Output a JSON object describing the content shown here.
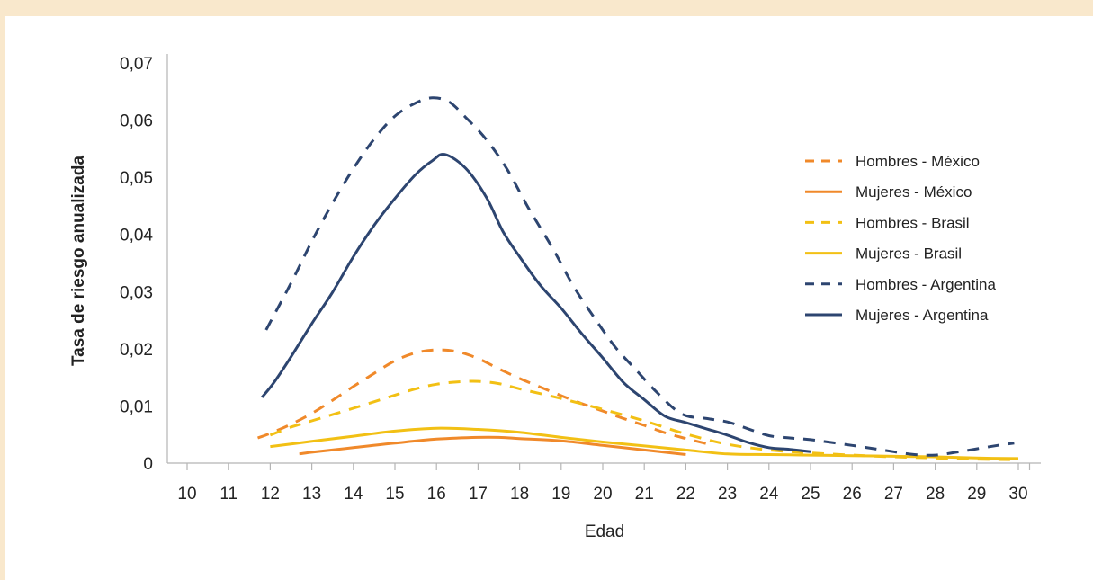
{
  "chart_data": {
    "type": "line",
    "xlabel": "Edad",
    "ylabel": "Tasa de riesgo anualizada",
    "xlim": [
      10,
      30
    ],
    "ylim": [
      0,
      0.07
    ],
    "x_ticks": [
      10,
      11,
      12,
      13,
      14,
      15,
      16,
      17,
      18,
      19,
      20,
      21,
      22,
      23,
      24,
      25,
      26,
      27,
      28,
      29,
      30
    ],
    "y_ticks": [
      0,
      0.01,
      0.02,
      0.03,
      0.04,
      0.05,
      0.06,
      0.07
    ],
    "y_tick_labels": [
      "0",
      "0,01",
      "0,02",
      "0,03",
      "0,04",
      "0,05",
      "0,06",
      "0,07"
    ],
    "grid": false,
    "legend_position": "right",
    "series": [
      {
        "name": "Hombres - México",
        "color": "#f0892a",
        "style": "dashed",
        "x": [
          11.7,
          12,
          12.5,
          13,
          13.5,
          14,
          14.5,
          15,
          15.5,
          16,
          16.5,
          17,
          17.5,
          18,
          18.5,
          19,
          19.5,
          20,
          20.5,
          21,
          21.5,
          22,
          22.5
        ],
        "y": [
          0.0044,
          0.0052,
          0.0068,
          0.0087,
          0.011,
          0.0134,
          0.0157,
          0.0179,
          0.0193,
          0.0198,
          0.0195,
          0.0183,
          0.0165,
          0.0148,
          0.0133,
          0.0118,
          0.0104,
          0.0091,
          0.0078,
          0.0066,
          0.0053,
          0.0043,
          0.0034
        ]
      },
      {
        "name": "Mujeres - México",
        "color": "#f0892a",
        "style": "solid",
        "x": [
          12.7,
          13,
          14,
          15,
          16,
          17,
          17.5,
          18,
          19,
          20,
          21,
          22
        ],
        "y": [
          0.0016,
          0.0019,
          0.0027,
          0.0035,
          0.0042,
          0.0045,
          0.0045,
          0.0043,
          0.0039,
          0.0031,
          0.0023,
          0.0015
        ]
      },
      {
        "name": "Hombres - Brasil",
        "color": "#f2c014",
        "style": "dashed",
        "x": [
          12,
          12.5,
          13,
          14,
          15,
          15.5,
          16,
          16.5,
          17,
          17.5,
          18,
          19,
          20,
          21,
          22,
          23,
          24,
          25,
          26,
          27,
          28,
          29,
          30
        ],
        "y": [
          0.0049,
          0.0063,
          0.0074,
          0.0096,
          0.0119,
          0.013,
          0.0138,
          0.0142,
          0.0143,
          0.0139,
          0.013,
          0.0113,
          0.0094,
          0.0074,
          0.0051,
          0.0033,
          0.0023,
          0.0018,
          0.0014,
          0.0011,
          0.0009,
          0.0007,
          0.0006
        ]
      },
      {
        "name": "Mujeres - Brasil",
        "color": "#f2c014",
        "style": "solid",
        "x": [
          12,
          13,
          14,
          15,
          16,
          17,
          18,
          19,
          20,
          21,
          22,
          23,
          24,
          25,
          26,
          27,
          28,
          29,
          30
        ],
        "y": [
          0.0029,
          0.0038,
          0.0047,
          0.0056,
          0.0061,
          0.0059,
          0.0054,
          0.0045,
          0.0037,
          0.003,
          0.0023,
          0.0016,
          0.0015,
          0.0014,
          0.0013,
          0.0012,
          0.0011,
          0.0009,
          0.0008
        ]
      },
      {
        "name": "Hombres - Argentina",
        "color": "#2d4570",
        "style": "dashed",
        "x": [
          11.9,
          12.5,
          13,
          13.5,
          14,
          14.5,
          15,
          15.5,
          15.9,
          16.3,
          16.7,
          17.2,
          17.7,
          18.2,
          18.8,
          19.3,
          19.8,
          20.3,
          20.8,
          21.3,
          21.9,
          22.5,
          23,
          23.5,
          24,
          24.5,
          25,
          26,
          27,
          27.5,
          28,
          28.5,
          29,
          29.5,
          29.9
        ],
        "y": [
          0.0233,
          0.0315,
          0.0388,
          0.0455,
          0.0515,
          0.0567,
          0.0607,
          0.063,
          0.0639,
          0.0632,
          0.0605,
          0.0566,
          0.0514,
          0.0448,
          0.0375,
          0.0309,
          0.0254,
          0.0203,
          0.0163,
          0.0124,
          0.0086,
          0.0078,
          0.0072,
          0.006,
          0.0048,
          0.0044,
          0.0041,
          0.0031,
          0.002,
          0.0015,
          0.0014,
          0.0019,
          0.0025,
          0.0031,
          0.0035
        ]
      },
      {
        "name": "Mujeres - Argentina",
        "color": "#2d4570",
        "style": "solid",
        "x": [
          11.8,
          12.1,
          12.5,
          13,
          13.5,
          14,
          14.5,
          15,
          15.5,
          15.9,
          16.2,
          16.7,
          17.2,
          17.6,
          18,
          18.5,
          19,
          19.5,
          20,
          20.5,
          21,
          21.5,
          22,
          22.5,
          23,
          23.5,
          24,
          24.5,
          25
        ],
        "y": [
          0.0115,
          0.0142,
          0.0186,
          0.0244,
          0.0299,
          0.0361,
          0.0416,
          0.0463,
          0.0505,
          0.0529,
          0.054,
          0.0516,
          0.0465,
          0.0405,
          0.0361,
          0.0311,
          0.0271,
          0.0226,
          0.0184,
          0.0141,
          0.0111,
          0.0082,
          0.0071,
          0.006,
          0.0049,
          0.0036,
          0.0027,
          0.0024,
          0.002
        ]
      }
    ]
  }
}
